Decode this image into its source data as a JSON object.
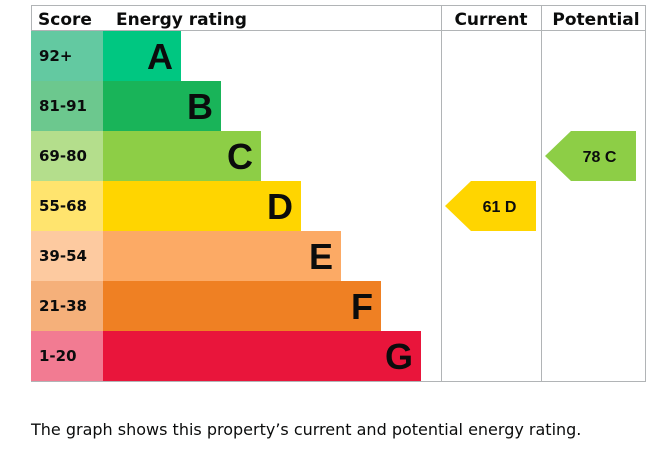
{
  "chart_data": {
    "type": "bar",
    "headers": {
      "score": "Score",
      "rating": "Energy rating",
      "current": "Current",
      "potential": "Potential"
    },
    "bands": [
      {
        "letter": "A",
        "score": "92+",
        "color": "#00c781",
        "score_bg": "#63c9a1"
      },
      {
        "letter": "B",
        "score": "81-91",
        "color": "#19b459",
        "score_bg": "#6cc88e"
      },
      {
        "letter": "C",
        "score": "69-80",
        "color": "#8dce46",
        "score_bg": "#b4de8c"
      },
      {
        "letter": "D",
        "score": "55-68",
        "color": "#ffd500",
        "score_bg": "#ffe46e"
      },
      {
        "letter": "E",
        "score": "39-54",
        "color": "#fcaa65",
        "score_bg": "#fdcaa0"
      },
      {
        "letter": "F",
        "score": "21-38",
        "color": "#ef8023",
        "score_bg": "#f5b07a"
      },
      {
        "letter": "G",
        "score": "1-20",
        "color": "#e9153b",
        "score_bg": "#f27b92"
      }
    ],
    "current": {
      "value": 61,
      "band": "D",
      "label": "61 D",
      "color": "#ffd500"
    },
    "potential": {
      "value": 78,
      "band": "C",
      "label": "78 C",
      "color": "#8dce46"
    }
  },
  "caption": "The graph shows this property’s current and potential energy rating."
}
